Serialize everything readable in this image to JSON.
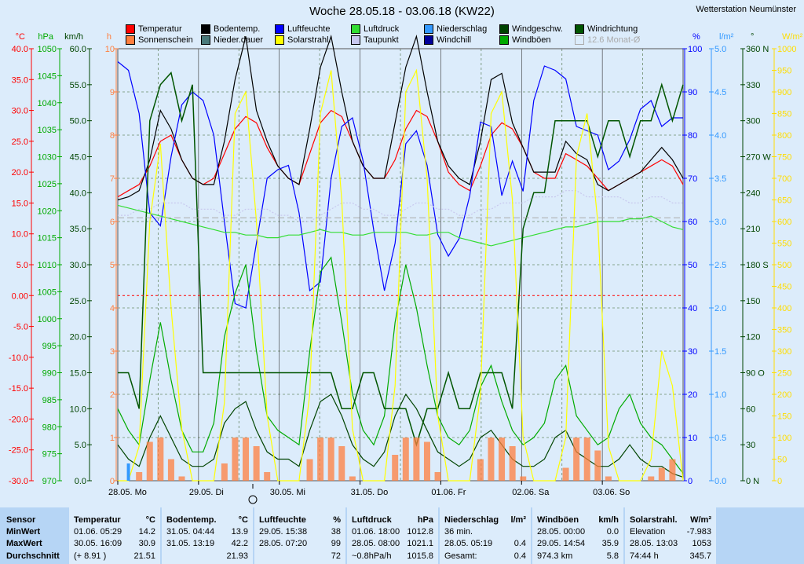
{
  "title": "Woche 28.05.18 - 03.06.18 (KW22)",
  "station": "Wetterstation Neumünster",
  "legend": [
    {
      "label": "Temperatur",
      "color": "#ff0000"
    },
    {
      "label": "Sonnenschein",
      "color": "#ff7f3f"
    },
    {
      "label": "Bodentemp.",
      "color": "#000000"
    },
    {
      "label": "Nieder.dauer",
      "color": "#4a7a7a"
    },
    {
      "label": "Luftfeuchte",
      "color": "#0000ff"
    },
    {
      "label": "Solarstrahl.",
      "color": "#ffff00"
    },
    {
      "label": "Luftdruck",
      "color": "#33dd33"
    },
    {
      "label": "Taupunkt",
      "color": "#c8c8ee"
    },
    {
      "label": "Niederschlag",
      "color": "#3399ff"
    },
    {
      "label": "Windchill",
      "color": "#000099"
    },
    {
      "label": "Windgeschw.",
      "color": "#004400"
    },
    {
      "label": "Windböen",
      "color": "#00aa00"
    },
    {
      "label": "Windrichtung",
      "color": "#005500"
    },
    {
      "label": "12.6 Monat-Ø",
      "color": "#aaaaaa"
    }
  ],
  "axes": {
    "temp": {
      "unit": "°C",
      "ticks": [
        "40.0",
        "35.0",
        "30.0",
        "25.0",
        "20.0",
        "15.0",
        "10.0",
        "5.0",
        "0.00",
        "-5.0",
        "-10.0",
        "-15.0",
        "-20.0",
        "-25.0",
        "-30.0"
      ],
      "color": "#ff0000"
    },
    "hpa": {
      "unit": "hPa",
      "ticks": [
        "1050",
        "1045",
        "1040",
        "1035",
        "1030",
        "1025",
        "1020",
        "1015",
        "1010",
        "1005",
        "1000",
        "995",
        "990",
        "985",
        "980",
        "975",
        "970"
      ],
      "color": "#00aa00"
    },
    "kmh": {
      "unit": "km/h",
      "ticks": [
        "60.0",
        "55.0",
        "50.0",
        "45.0",
        "40.0",
        "35.0",
        "30.0",
        "25.0",
        "20.0",
        "15.0",
        "10.0",
        "5.0",
        "0.0"
      ],
      "color": "#004400"
    },
    "hours": {
      "unit": "h",
      "ticks": [
        "10",
        "9",
        "8",
        "7",
        "6",
        "5",
        "4",
        "3",
        "2",
        "1",
        "0"
      ],
      "color": "#ff7f3f"
    },
    "pct": {
      "unit": "%",
      "ticks": [
        "100",
        "90",
        "80",
        "70",
        "60",
        "50",
        "40",
        "30",
        "20",
        "10",
        "0"
      ],
      "color": "#0000ff"
    },
    "lm2": {
      "unit": "l/m²",
      "ticks": [
        "5.0",
        "4.5",
        "4.0",
        "3.5",
        "3.0",
        "2.5",
        "2.0",
        "1.5",
        "1.0",
        "0.5",
        "0.0"
      ],
      "color": "#3399ff"
    },
    "deg": {
      "unit": "°",
      "ticks": [
        "360 N",
        "330",
        "300",
        "270 W",
        "240",
        "210",
        "180 S",
        "150",
        "120",
        "90 O",
        "60",
        "30",
        "0  N"
      ],
      "color": "#004400"
    },
    "wm2": {
      "unit": "W/m²",
      "ticks": [
        "1000",
        "950",
        "900",
        "850",
        "800",
        "750",
        "700",
        "650",
        "600",
        "550",
        "500",
        "450",
        "400",
        "350",
        "300",
        "250",
        "200",
        "150",
        "100",
        "50",
        "0"
      ],
      "color": "#ffdd00"
    }
  },
  "days": [
    "28.05.  Mo",
    "29.05.  Di",
    "30.05.  Mi",
    "31.05.  Do",
    "01.06.  Fr",
    "02.06.  Sa",
    "03.06.  So"
  ],
  "chart_data": {
    "type": "line",
    "x_start": "28.05.18 00:00",
    "x_step_hours": 3,
    "x_label_ticks": [
      "28.05. Mo",
      "29.05. Di",
      "30.05. Mi",
      "31.05. Do",
      "01.06. Fr",
      "02.06. Sa",
      "03.06. So"
    ],
    "series": [
      {
        "name": "Temperatur",
        "unit": "°C",
        "values": [
          16,
          17,
          18,
          21,
          25,
          26,
          22,
          19,
          18,
          19,
          23,
          27,
          29,
          28,
          24,
          21,
          19,
          18,
          23,
          28,
          30,
          29,
          25,
          21,
          19,
          19,
          22,
          27,
          30,
          29,
          25,
          20,
          18,
          17,
          21,
          26,
          28,
          27,
          24,
          20,
          19,
          19,
          23,
          22,
          21,
          19,
          17,
          18,
          19,
          20,
          21,
          22,
          21,
          18
        ]
      },
      {
        "name": "Bodentemp.",
        "unit": "°C",
        "values": [
          15.5,
          16,
          17,
          22,
          30,
          27,
          22,
          19,
          18,
          18,
          25,
          35,
          42,
          30,
          25,
          21,
          19,
          18,
          27,
          37,
          42,
          33,
          25,
          21,
          19,
          19,
          28,
          37,
          42,
          33,
          25,
          21,
          19,
          18,
          25,
          35,
          36,
          28,
          24,
          20,
          20,
          20,
          25,
          23,
          22,
          18,
          17,
          18,
          19,
          20,
          22,
          24,
          22,
          19
        ]
      },
      {
        "name": "Luftfeuchte",
        "unit": "%",
        "values": [
          97,
          95,
          85,
          62,
          59,
          75,
          87,
          90,
          88,
          80,
          60,
          41,
          40,
          55,
          70,
          72,
          73,
          62,
          44,
          46,
          70,
          82,
          84,
          74,
          58,
          44,
          55,
          78,
          81,
          73,
          57,
          52,
          56,
          66,
          83,
          82,
          66,
          74,
          67,
          88,
          96,
          95,
          93,
          82,
          81,
          80,
          72,
          74,
          79,
          86,
          88,
          82,
          84,
          84
        ]
      },
      {
        "name": "Luftdruck",
        "unit": "hPa",
        "values": [
          1021,
          1020.5,
          1020,
          1019.5,
          1019,
          1018.5,
          1018,
          1017.5,
          1017,
          1016.5,
          1016,
          1016,
          1015.5,
          1015.5,
          1015,
          1015,
          1015.5,
          1015.5,
          1016,
          1016.5,
          1016,
          1016,
          1015.5,
          1015.5,
          1016,
          1016,
          1016,
          1016,
          1015.5,
          1015.5,
          1016,
          1016,
          1015,
          1014.5,
          1014,
          1013.5,
          1014,
          1014.5,
          1015,
          1015.5,
          1016,
          1016.5,
          1017,
          1017,
          1017.5,
          1018,
          1018,
          1018,
          1018.5,
          1018.5,
          1019,
          1018,
          1017,
          1016.5
        ]
      },
      {
        "name": "Taupunkt",
        "unit": "°C",
        "values": [
          13,
          13,
          14,
          14,
          15,
          15,
          15,
          14,
          14,
          14,
          13,
          13,
          14,
          14,
          14,
          13,
          13,
          12,
          12,
          13,
          14,
          15,
          15,
          14,
          14,
          13,
          13,
          14,
          15,
          15,
          14,
          14,
          13,
          13,
          14,
          14,
          15,
          15,
          15,
          16,
          16,
          16,
          17,
          17,
          16,
          16,
          16,
          16,
          15,
          15,
          16,
          16,
          15,
          15
        ]
      },
      {
        "name": "Windgeschw.",
        "unit": "km/h",
        "values": [
          5,
          3,
          2,
          6,
          9,
          6,
          3,
          2,
          2,
          3,
          8,
          10,
          11,
          7,
          4,
          3,
          3,
          2,
          7,
          11,
          12,
          9,
          5,
          3,
          2,
          4,
          9,
          12,
          10,
          7,
          4,
          3,
          2,
          3,
          6,
          7,
          5,
          3,
          2,
          2,
          3,
          6,
          7,
          4,
          3,
          2,
          2,
          3,
          5,
          3,
          2,
          2,
          1,
          0.5
        ]
      },
      {
        "name": "Windböen",
        "unit": "km/h",
        "values": [
          10,
          7,
          5,
          14,
          22,
          14,
          7,
          4,
          4,
          8,
          20,
          26,
          30,
          18,
          9,
          7,
          6,
          5,
          18,
          29,
          31,
          22,
          12,
          7,
          5,
          9,
          22,
          30,
          24,
          16,
          9,
          6,
          5,
          7,
          13,
          16,
          11,
          7,
          5,
          6,
          8,
          14,
          16,
          9,
          7,
          5,
          6,
          10,
          12,
          8,
          6,
          5,
          3,
          1
        ]
      },
      {
        "name": "Windrichtung",
        "unit": "°",
        "values": [
          90,
          90,
          60,
          300,
          330,
          340,
          300,
          330,
          90,
          90,
          90,
          90,
          90,
          90,
          90,
          90,
          90,
          90,
          90,
          90,
          90,
          60,
          60,
          90,
          90,
          60,
          60,
          60,
          30,
          60,
          60,
          90,
          60,
          60,
          90,
          90,
          90,
          60,
          210,
          240,
          240,
          300,
          300,
          300,
          300,
          270,
          300,
          300,
          270,
          300,
          300,
          330,
          300,
          330
        ]
      },
      {
        "name": "Solarstrahl.",
        "unit": "W/m²",
        "values": [
          0,
          0,
          80,
          600,
          780,
          400,
          120,
          0,
          0,
          0,
          180,
          850,
          900,
          600,
          150,
          0,
          0,
          0,
          200,
          850,
          950,
          650,
          120,
          0,
          0,
          0,
          220,
          900,
          950,
          700,
          150,
          0,
          0,
          0,
          200,
          850,
          900,
          650,
          100,
          0,
          0,
          0,
          100,
          750,
          850,
          600,
          80,
          0,
          0,
          0,
          50,
          300,
          220,
          0
        ]
      },
      {
        "name": "Sonnenschein",
        "unit": "h",
        "values": [
          0,
          0,
          0.2,
          0.9,
          1.0,
          0.5,
          0.1,
          0,
          0,
          0,
          0.4,
          1.0,
          1.0,
          0.8,
          0.2,
          0,
          0,
          0,
          0.5,
          1.0,
          1.0,
          0.8,
          0.1,
          0,
          0,
          0,
          0.6,
          1.0,
          1.0,
          0.9,
          0.2,
          0,
          0,
          0,
          0.5,
          1.0,
          1.0,
          0.8,
          0.1,
          0,
          0,
          0,
          0.3,
          1.0,
          1.0,
          0.7,
          0.1,
          0,
          0,
          0,
          0.1,
          0.3,
          0.5,
          0
        ]
      },
      {
        "name": "Niederschlag",
        "unit": "l/m²",
        "values": [
          0,
          0.2,
          0,
          0,
          0,
          0,
          0,
          0,
          0,
          0,
          0,
          0,
          0,
          0,
          0,
          0,
          0,
          0,
          0,
          0,
          0,
          0,
          0,
          0,
          0,
          0,
          0,
          0,
          0,
          0,
          0,
          0,
          0,
          0,
          0,
          0,
          0,
          0,
          0,
          0,
          0,
          0,
          0,
          0,
          0,
          0,
          0,
          0,
          0,
          0,
          0,
          0,
          0,
          0
        ]
      }
    ],
    "reference_lines": [
      {
        "name": "12.6 Monat-Ø",
        "value": 12.6,
        "unit": "°C"
      }
    ],
    "temp_range": [
      -30,
      40
    ],
    "grid": true
  },
  "table": {
    "row_labels": [
      "Sensor",
      "MinWert",
      "MaxWert",
      "Durchschnitt"
    ],
    "columns": [
      {
        "title": "Temperatur",
        "unit": "°C",
        "rows": [
          [
            "01.06.  05:29",
            "14.2"
          ],
          [
            "30.05.  16:09",
            "30.9"
          ],
          [
            "(+ 8.91 )",
            "21.51"
          ]
        ]
      },
      {
        "title": "Bodentemp.",
        "unit": "°C",
        "rows": [
          [
            "31.05.  04:44",
            "13.9"
          ],
          [
            "31.05.  13:19",
            "42.2"
          ],
          [
            "",
            "21.93"
          ]
        ]
      },
      {
        "title": "Luftfeuchte",
        "unit": "%",
        "rows": [
          [
            "29.05.  15:38",
            "38"
          ],
          [
            "28.05.  07:20",
            "99"
          ],
          [
            "",
            "72"
          ]
        ]
      },
      {
        "title": "Luftdruck",
        "unit": "hPa",
        "rows": [
          [
            "01.06.  18:00",
            "1012.8"
          ],
          [
            "28.05.  08:00",
            "1021.1"
          ],
          [
            "~0.8hPa/h",
            "1015.8"
          ]
        ]
      },
      {
        "title": "Niederschlag",
        "unit": "l/m²",
        "rows": [
          [
            "36 min.",
            ""
          ],
          [
            "28.05.  05:19",
            "0.4"
          ],
          [
            "Gesamt:",
            "0.4"
          ]
        ]
      },
      {
        "title": "Windböen",
        "unit": "km/h",
        "rows": [
          [
            "28.05.  00:00",
            "0.0"
          ],
          [
            "29.05.  14:54",
            "35.9"
          ],
          [
            "974.3 km",
            "5.8"
          ]
        ]
      },
      {
        "title": "Solarstrahl.",
        "unit": "W/m²",
        "rows": [
          [
            "Elevation",
            "-7.983"
          ],
          [
            "28.05.  13:03",
            "1053"
          ],
          [
            "74:44 h",
            "345.7"
          ]
        ]
      }
    ]
  }
}
